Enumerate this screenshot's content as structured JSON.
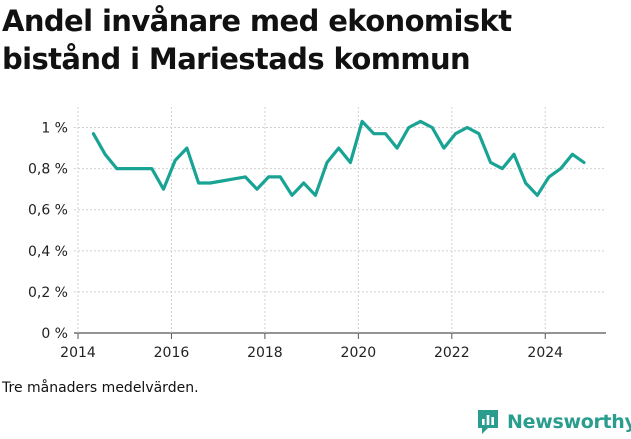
{
  "title": "Andel invånare med ekonomiskt bistånd i Mariestads kommun",
  "footnote": "Tre månaders medelvärden.",
  "brand": {
    "name": "Newsworthy",
    "color": "#2a9d8f",
    "icon": "newsworthy-logo-icon"
  },
  "chart_data": {
    "type": "line",
    "title": "Andel invånare med ekonomiskt bistånd i Mariestads kommun",
    "xlabel": "",
    "ylabel": "",
    "xlim": [
      2014,
      2025.3
    ],
    "ylim": [
      0,
      1.1
    ],
    "grid": true,
    "x_ticks": [
      2014,
      2016,
      2018,
      2020,
      2022,
      2024
    ],
    "x_tick_labels": [
      "2014",
      "2016",
      "2018",
      "2020",
      "2022",
      "2024"
    ],
    "y_ticks": [
      0,
      0.2,
      0.4,
      0.6,
      0.8,
      1.0
    ],
    "y_tick_labels": [
      "0 %",
      "0,2 %",
      "0,4 %",
      "0,6 %",
      "0,8 %",
      "1 %"
    ],
    "series": [
      {
        "name": "Andel invånare med ekonomiskt bistånd",
        "color": "#18a394",
        "x": [
          2014.33,
          2014.58,
          2014.83,
          2015.08,
          2015.33,
          2015.58,
          2015.83,
          2016.08,
          2016.33,
          2016.58,
          2016.83,
          2017.08,
          2017.33,
          2017.58,
          2017.83,
          2018.08,
          2018.33,
          2018.58,
          2018.83,
          2019.08,
          2019.33,
          2019.58,
          2019.83,
          2020.08,
          2020.33,
          2020.58,
          2020.83,
          2021.08,
          2021.33,
          2021.58,
          2021.83,
          2022.08,
          2022.33,
          2022.58,
          2022.83,
          2023.08,
          2023.33,
          2023.58,
          2023.83,
          2024.08,
          2024.33,
          2024.58,
          2024.83
        ],
        "values": [
          0.97,
          0.87,
          0.8,
          0.8,
          0.8,
          0.8,
          0.7,
          0.84,
          0.9,
          0.73,
          0.73,
          0.74,
          0.75,
          0.76,
          0.7,
          0.76,
          0.76,
          0.67,
          0.73,
          0.67,
          0.83,
          0.9,
          0.83,
          1.03,
          0.97,
          0.97,
          0.9,
          1.0,
          1.03,
          1.0,
          0.9,
          0.97,
          1.0,
          0.97,
          0.83,
          0.8,
          0.87,
          0.73,
          0.67,
          0.76,
          0.8,
          0.87,
          0.83
        ]
      }
    ]
  }
}
